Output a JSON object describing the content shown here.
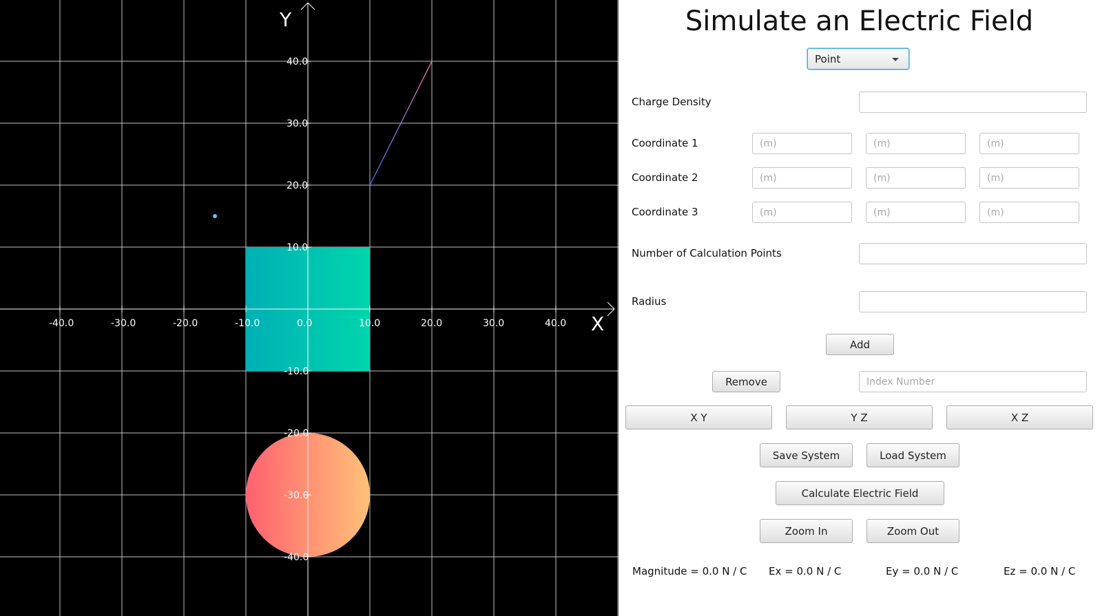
{
  "plot": {
    "axis_x_label": "X",
    "axis_y_label": "Y",
    "x_tick_labels": [
      "-40.0",
      "-30.0",
      "-20.0",
      "-10.0",
      "0.0",
      "10.0",
      "20.0",
      "30.0",
      "40.0"
    ],
    "y_tick_labels": [
      "40.0",
      "30.0",
      "20.0",
      "10.0",
      "-10.0",
      "-20.0",
      "-30.0",
      "-40.0"
    ],
    "background_color": "#000000",
    "grid_color": "#ffffff",
    "objects": {
      "point_charge": {
        "x": -15.0,
        "y": 15.0,
        "color": "#5bc8ff"
      },
      "line_charge": {
        "x1": 10.0,
        "y1": 20.0,
        "x2": 20.0,
        "y2": 40.0,
        "color_start": "#3d6cff",
        "color_end": "#ff6fa3"
      },
      "plane_charge": {
        "x_min": -10.0,
        "x_max": 10.0,
        "y_min": -10.0,
        "y_max": 10.0,
        "color_start": "#00b0b5",
        "color_end": "#00d5ac"
      },
      "sphere_charge": {
        "cx": 0.0,
        "cy": -30.0,
        "r": 10.0,
        "color_start": "#ff616f",
        "color_end": "#ffc178"
      }
    }
  },
  "panel": {
    "title": "Simulate an Electric Field",
    "type_select": {
      "value": "Point"
    },
    "charge_density_label": "Charge Density",
    "charge_density_value": "",
    "coordinate_labels": [
      "Coordinate 1",
      "Coordinate 2",
      "Coordinate 3"
    ],
    "coordinate_placeholder": "(m)",
    "calc_points_label": "Number of Calculation Points",
    "calc_points_value": "",
    "radius_label": "Radius",
    "radius_value": "",
    "add_label": "Add",
    "remove_label": "Remove",
    "index_placeholder": "Index Number",
    "view_xy_label": "X Y",
    "view_yz_label": "Y Z",
    "view_xz_label": "X Z",
    "save_label": "Save System",
    "load_label": "Load System",
    "calculate_label": "Calculate Electric Field",
    "zoom_in_label": "Zoom In",
    "zoom_out_label": "Zoom Out",
    "magnitude_text": "Magnitude = 0.0 N / C",
    "ex_text": "Ex = 0.0 N / C",
    "ey_text": "Ey = 0.0 N / C",
    "ez_text": "Ez = 0.0 N / C"
  }
}
